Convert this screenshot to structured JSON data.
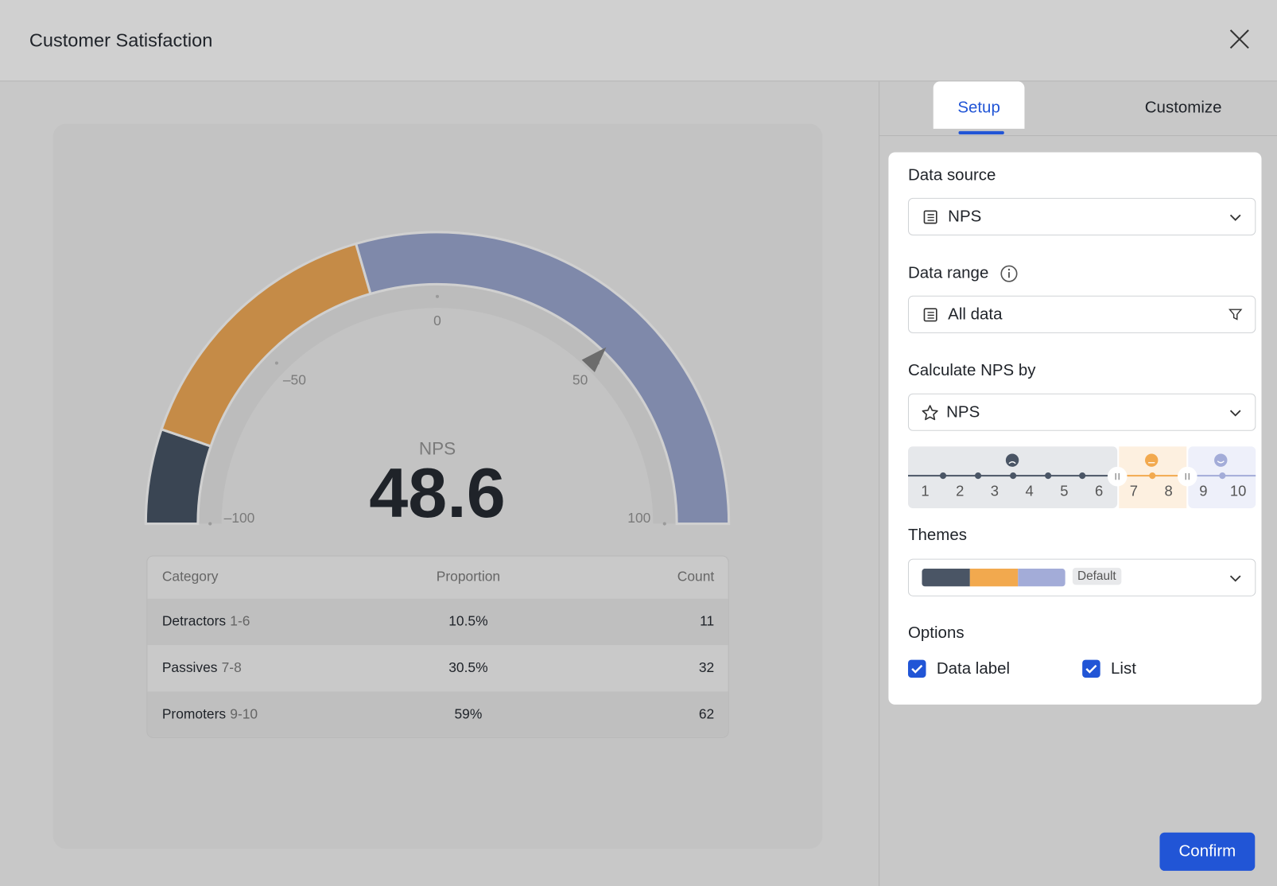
{
  "header": {
    "title": "Customer Satisfaction"
  },
  "tabs": [
    "Setup",
    "Customize"
  ],
  "chart_data": {
    "type": "gauge",
    "title": "NPS",
    "value": 48.6,
    "xlim": [
      -100,
      100
    ],
    "xticks": [
      {
        "value": -100,
        "label": "–100"
      },
      {
        "value": -50,
        "label": "–50"
      },
      0,
      50,
      100
    ],
    "columns": [
      "Category",
      "Proportion",
      "Count"
    ],
    "categories": [
      "Detractors",
      "Passives",
      "Promoters"
    ],
    "ranges": [
      "1-6",
      "7-8",
      "9-10"
    ],
    "values": [
      10.5,
      30.5,
      59
    ],
    "value_labels": [
      "10.5%",
      "30.5%",
      "59%"
    ],
    "counts": [
      11,
      32,
      62
    ],
    "colors": [
      "#3a4553",
      "#c58b47",
      "#7f89aa"
    ]
  },
  "panel": {
    "data_source": {
      "label": "Data source",
      "value": "NPS"
    },
    "data_range": {
      "label": "Data range",
      "value": "All data"
    },
    "calculate_by": {
      "label": "Calculate NPS by",
      "value": "NPS"
    },
    "scale": [
      1,
      2,
      3,
      4,
      5,
      6,
      7,
      8,
      9,
      10
    ],
    "themes": {
      "label": "Themes",
      "badge": "Default"
    },
    "options": {
      "label": "Options",
      "items": [
        "Data label",
        "List"
      ]
    },
    "confirm": "Confirm"
  }
}
